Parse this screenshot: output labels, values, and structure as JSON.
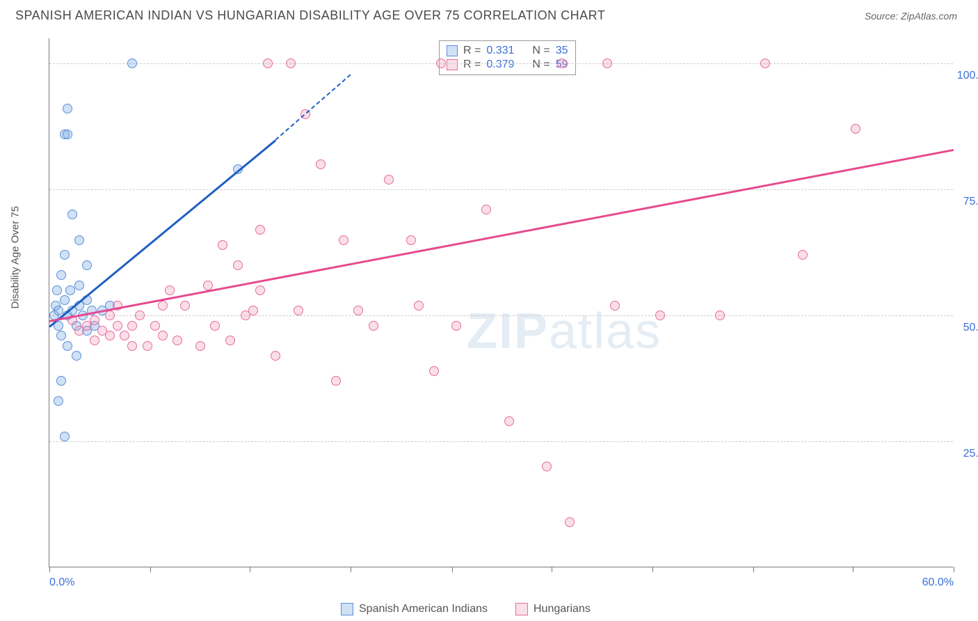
{
  "header": {
    "title": "SPANISH AMERICAN INDIAN VS HUNGARIAN DISABILITY AGE OVER 75 CORRELATION CHART",
    "source": "Source: ZipAtlas.com"
  },
  "chart": {
    "type": "scatter",
    "y_axis_label": "Disability Age Over 75",
    "xlim": [
      0,
      60
    ],
    "ylim": [
      0,
      105
    ],
    "x_ticks": [
      0,
      6.7,
      13.3,
      20,
      26.7,
      33.3,
      40,
      46.7,
      53.3,
      60
    ],
    "x_tick_labels": {
      "0": "0.0%",
      "60": "60.0%"
    },
    "y_gridlines": [
      25,
      50,
      75,
      100
    ],
    "y_tick_labels": {
      "25": "25.0%",
      "50": "50.0%",
      "75": "75.0%",
      "100": "100.0%"
    },
    "background_color": "#ffffff",
    "grid_color": "#cccccc",
    "axis_color": "#777777",
    "tick_label_color": "#3a6fd8",
    "marker_size": 14,
    "series": [
      {
        "id": "a",
        "name": "Spanish American Indians",
        "fill_color": "rgba(120,170,230,0.35)",
        "stroke_color": "#5a8fd6",
        "trend_color": "#1f5fc4",
        "r_value": "0.331",
        "n_value": "35",
        "trend": {
          "x1": 0,
          "y1": 48,
          "x2": 15,
          "y2": 85,
          "dash_to_x": 20,
          "dash_to_y": 98
        },
        "points": [
          [
            0.3,
            50
          ],
          [
            0.4,
            52
          ],
          [
            0.5,
            55
          ],
          [
            0.6,
            48
          ],
          [
            0.6,
            51
          ],
          [
            0.8,
            58
          ],
          [
            0.8,
            46
          ],
          [
            1.0,
            53
          ],
          [
            1.0,
            62
          ],
          [
            1.2,
            50
          ],
          [
            1.2,
            44
          ],
          [
            1.4,
            55
          ],
          [
            1.5,
            51
          ],
          [
            1.5,
            70
          ],
          [
            1.8,
            48
          ],
          [
            1.8,
            42
          ],
          [
            2.0,
            52
          ],
          [
            2.0,
            56
          ],
          [
            2.2,
            50
          ],
          [
            2.5,
            53
          ],
          [
            2.5,
            47
          ],
          [
            2.8,
            51
          ],
          [
            0.8,
            37
          ],
          [
            0.6,
            33
          ],
          [
            1.0,
            26
          ],
          [
            1.2,
            91
          ],
          [
            1.0,
            86
          ],
          [
            1.2,
            86
          ],
          [
            5.5,
            100
          ],
          [
            2.5,
            60
          ],
          [
            3.5,
            51
          ],
          [
            4.0,
            52
          ],
          [
            12.5,
            79
          ],
          [
            3.0,
            48
          ],
          [
            2.0,
            65
          ]
        ]
      },
      {
        "id": "b",
        "name": "Hungarians",
        "fill_color": "rgba(240,150,180,0.3)",
        "stroke_color": "#e76a9f",
        "trend_color": "#e64a8f",
        "r_value": "0.379",
        "n_value": "59",
        "trend": {
          "x1": 0,
          "y1": 49,
          "x2": 60,
          "y2": 83
        },
        "points": [
          [
            1.5,
            49
          ],
          [
            2.0,
            47
          ],
          [
            2.5,
            48
          ],
          [
            3.0,
            45
          ],
          [
            3.0,
            49
          ],
          [
            3.5,
            47
          ],
          [
            4.0,
            50
          ],
          [
            4.0,
            46
          ],
          [
            4.5,
            48
          ],
          [
            4.5,
            52
          ],
          [
            5.0,
            46
          ],
          [
            5.5,
            48
          ],
          [
            5.5,
            44
          ],
          [
            6.0,
            50
          ],
          [
            6.5,
            44
          ],
          [
            7.0,
            48
          ],
          [
            7.5,
            46
          ],
          [
            8.0,
            55
          ],
          [
            8.5,
            45
          ],
          [
            9.0,
            52
          ],
          [
            10.0,
            44
          ],
          [
            10.5,
            56
          ],
          [
            11.0,
            48
          ],
          [
            12.0,
            45
          ],
          [
            12.5,
            60
          ],
          [
            13.0,
            50
          ],
          [
            14.0,
            55
          ],
          [
            15.0,
            42
          ],
          [
            14.5,
            100
          ],
          [
            16.0,
            100
          ],
          [
            7.5,
            52
          ],
          [
            11.5,
            64
          ],
          [
            14.0,
            67
          ],
          [
            17.0,
            90
          ],
          [
            20.5,
            51
          ],
          [
            19.0,
            37
          ],
          [
            18.0,
            80
          ],
          [
            21.5,
            48
          ],
          [
            22.5,
            77
          ],
          [
            24.0,
            65
          ],
          [
            24.5,
            52
          ],
          [
            25.5,
            39
          ],
          [
            26.0,
            100
          ],
          [
            27.0,
            48
          ],
          [
            29.0,
            71
          ],
          [
            30.5,
            29
          ],
          [
            33.0,
            20
          ],
          [
            34.0,
            100
          ],
          [
            34.5,
            9
          ],
          [
            37.0,
            100
          ],
          [
            37.5,
            52
          ],
          [
            40.5,
            50
          ],
          [
            44.5,
            50
          ],
          [
            47.5,
            100
          ],
          [
            50.0,
            62
          ],
          [
            53.5,
            87
          ],
          [
            16.5,
            51
          ],
          [
            19.5,
            65
          ],
          [
            13.5,
            51
          ]
        ]
      }
    ]
  },
  "stats_box": {
    "rows": [
      {
        "swatch_fill": "rgba(120,170,230,0.35)",
        "swatch_stroke": "#5a8fd6",
        "r_label": "R =",
        "r": "0.331",
        "n_label": "N =",
        "n": "35"
      },
      {
        "swatch_fill": "rgba(240,150,180,0.3)",
        "swatch_stroke": "#e76a9f",
        "r_label": "R =",
        "r": "0.379",
        "n_label": "N =",
        "n": "59"
      }
    ]
  },
  "legend": {
    "items": [
      {
        "swatch_fill": "rgba(120,170,230,0.35)",
        "swatch_stroke": "#5a8fd6",
        "label": "Spanish American Indians"
      },
      {
        "swatch_fill": "rgba(240,150,180,0.3)",
        "swatch_stroke": "#e76a9f",
        "label": "Hungarians"
      }
    ]
  },
  "watermark": {
    "bold": "ZIP",
    "rest": "atlas"
  }
}
